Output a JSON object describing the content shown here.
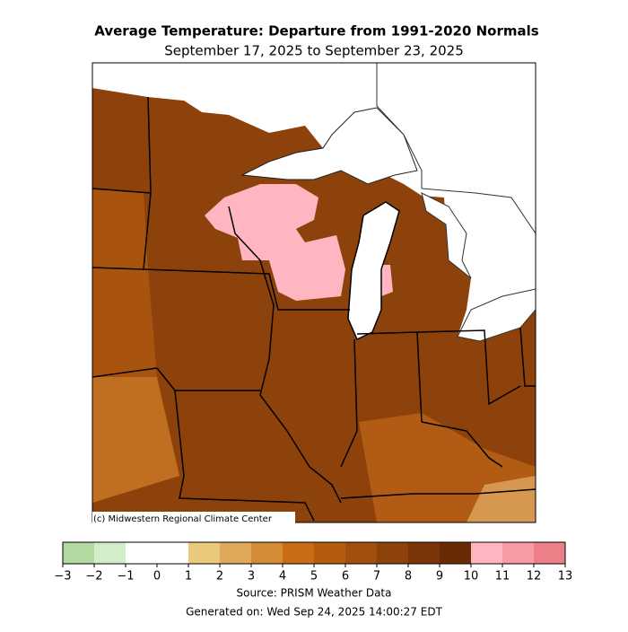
{
  "title": "Average Temperature: Departure from 1991-2020 Normals",
  "subtitle": "September 17, 2025 to September 23, 2025",
  "credit": "(c) Midwestern Regional Climate Center",
  "colorbar": {
    "bins": [
      -3,
      -2,
      -1,
      0,
      1,
      2,
      3,
      4,
      5,
      6,
      7,
      8,
      9,
      10,
      11,
      12,
      13
    ],
    "colors": [
      "#b3d9a1",
      "#d3edcb",
      "#ffffff",
      "#ffffff",
      "#eac97c",
      "#dfa95b",
      "#d48b36",
      "#c86d14",
      "#b45b0e",
      "#a24e0e",
      "#8d420b",
      "#7a3608",
      "#682b05",
      "#ffb6c1",
      "#f59ba6",
      "#ec7f88"
    ],
    "ticks": [
      {
        "value": -3,
        "label": "−3"
      },
      {
        "value": -2,
        "label": "−2"
      },
      {
        "value": -1,
        "label": "−1"
      },
      0,
      1,
      2,
      3,
      4,
      5,
      6,
      7,
      8,
      9,
      10,
      11,
      12,
      13
    ]
  },
  "source": "Source: PRISM Weather Data",
  "generated": "Generated on: Wed Sep 24, 2025 14:00:27 EDT"
}
